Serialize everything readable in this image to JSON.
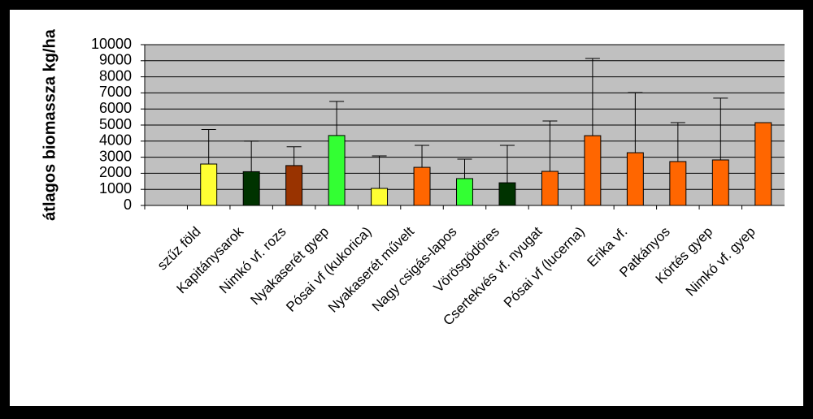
{
  "chart_data": {
    "type": "bar",
    "y_label": "átlagos biomassza kg/ha",
    "categories": [
      null,
      "szűz föld",
      "Kapitánysarok",
      "Nimkó vf. rozs",
      "Nyakaserét gyep",
      "Pósai vf (kukorica)",
      "Nyakaserét művelt",
      "Nagy csigás-lapos",
      "Vörösgödöres",
      "Csertekvés vf. nyugat",
      "Pósai vf (lucerna)",
      "Erika vf.",
      "Patkányos",
      "Körtés gyep",
      "Nimkó vf. gyep"
    ],
    "values": [
      null,
      2575,
      2100,
      2480,
      4350,
      1060,
      2370,
      1670,
      1410,
      2120,
      4340,
      3280,
      2730,
      2830,
      5150
    ],
    "errors": [
      null,
      2150,
      1900,
      1170,
      2120,
      2020,
      1370,
      1210,
      2330,
      3130,
      4800,
      3740,
      2420,
      3840,
      null
    ],
    "colors": [
      null,
      "#ffff33",
      "#003300",
      "#993300",
      "#33ff33",
      "#ffff33",
      "#ff6600",
      "#33ff33",
      "#003300",
      "#ff6600",
      "#ff6600",
      "#ff6600",
      "#ff6600",
      "#ff6600",
      "#ff6600"
    ],
    "ylim": [
      0,
      10000
    ],
    "yticks": [
      0,
      1000,
      2000,
      3000,
      4000,
      5000,
      6000,
      7000,
      8000,
      9000,
      10000
    ],
    "grid": true
  }
}
